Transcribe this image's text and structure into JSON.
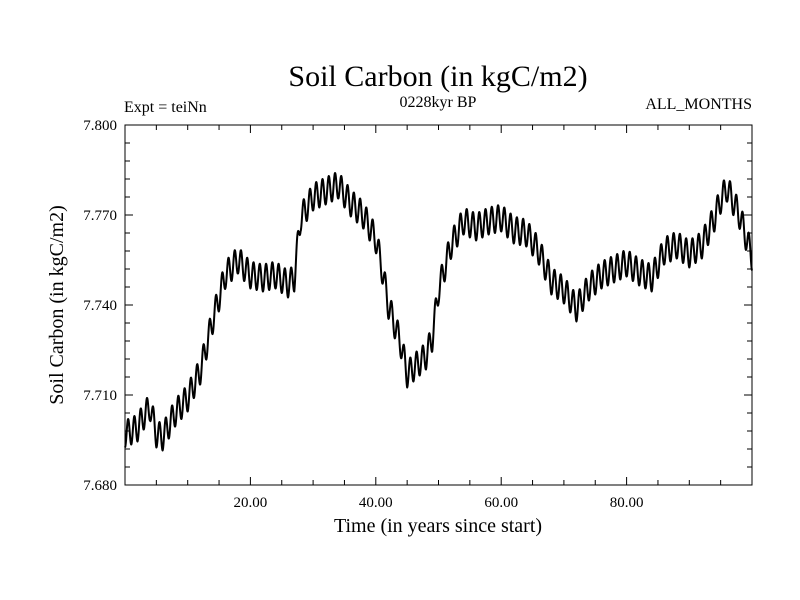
{
  "chart_data": {
    "type": "line",
    "title": "Soil Carbon (in kgC/m2)",
    "subtitle": "0228kyr BP",
    "left_label": "Expt = teiNn",
    "right_label": "ALL_MONTHS",
    "xlabel": "Time (in years since start)",
    "ylabel": "Soil Carbon (in kgC/m2)",
    "xlim": [
      0,
      100
    ],
    "ylim": [
      7.68,
      7.8
    ],
    "x_ticks": [
      20,
      40,
      60,
      80
    ],
    "x_tick_labels": [
      "20.00",
      "40.00",
      "60.00",
      "80.00"
    ],
    "y_ticks": [
      7.68,
      7.71,
      7.74,
      7.77,
      7.8
    ],
    "y_tick_labels": [
      "7.680",
      "7.710",
      "7.740",
      "7.770",
      "7.800"
    ],
    "series": [
      {
        "name": "Soil Carbon",
        "color": "#000000",
        "seasonal_amplitude": 0.0045,
        "seasonal_period_years": 1,
        "x": [
          0,
          2,
          3,
          4,
          5,
          6,
          7,
          8,
          10,
          12,
          14,
          16,
          18,
          20,
          22,
          24,
          26,
          27,
          28,
          30,
          32,
          34,
          36,
          38,
          40,
          41,
          42,
          44,
          45,
          46,
          48,
          49,
          50,
          52,
          54,
          56,
          58,
          60,
          62,
          64,
          66,
          68,
          70,
          72,
          74,
          76,
          78,
          80,
          82,
          84,
          86,
          88,
          90,
          92,
          94,
          95,
          96,
          98,
          100
        ],
        "values": [
          7.697,
          7.699,
          7.703,
          7.706,
          7.697,
          7.696,
          7.7,
          7.704,
          7.709,
          7.718,
          7.735,
          7.75,
          7.755,
          7.75,
          7.749,
          7.75,
          7.747,
          7.749,
          7.769,
          7.776,
          7.778,
          7.78,
          7.774,
          7.77,
          7.762,
          7.752,
          7.74,
          7.727,
          7.717,
          7.719,
          7.723,
          7.729,
          7.745,
          7.76,
          7.768,
          7.766,
          7.768,
          7.769,
          7.765,
          7.764,
          7.758,
          7.748,
          7.745,
          7.739,
          7.746,
          7.75,
          7.752,
          7.754,
          7.751,
          7.749,
          7.758,
          7.76,
          7.757,
          7.76,
          7.769,
          7.775,
          7.779,
          7.77,
          7.756
        ]
      }
    ]
  }
}
